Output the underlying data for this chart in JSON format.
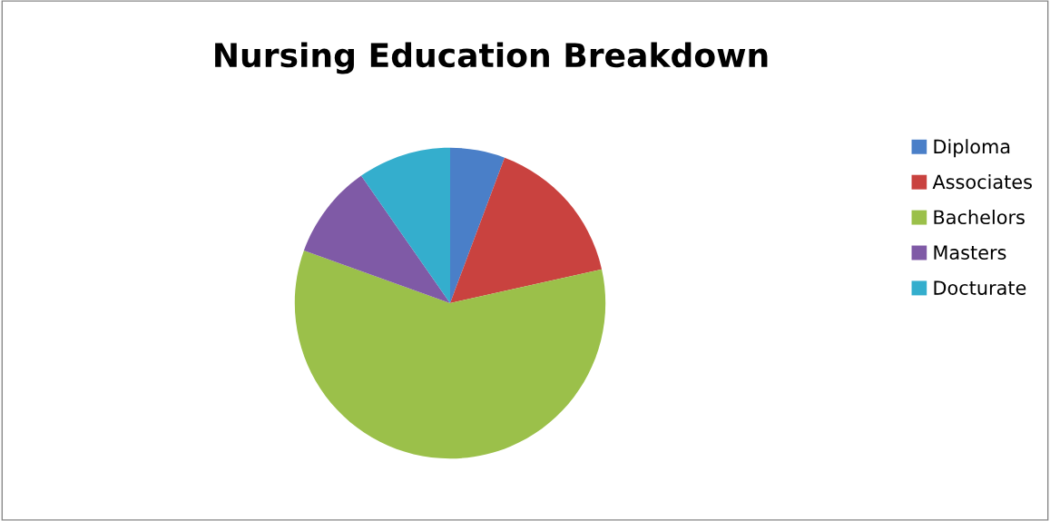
{
  "chart_data": {
    "type": "pie",
    "title": "Nursing Education Breakdown",
    "categories": [
      "Diploma",
      "Associates",
      "Bachelors",
      "Masters",
      "Docturate"
    ],
    "values": [
      5.7,
      15.8,
      59,
      9.8,
      9.7
    ],
    "colors": [
      "#4a7fc8",
      "#c9423f",
      "#9bc04a",
      "#7f5aa6",
      "#34aecd"
    ],
    "legend": "right"
  }
}
